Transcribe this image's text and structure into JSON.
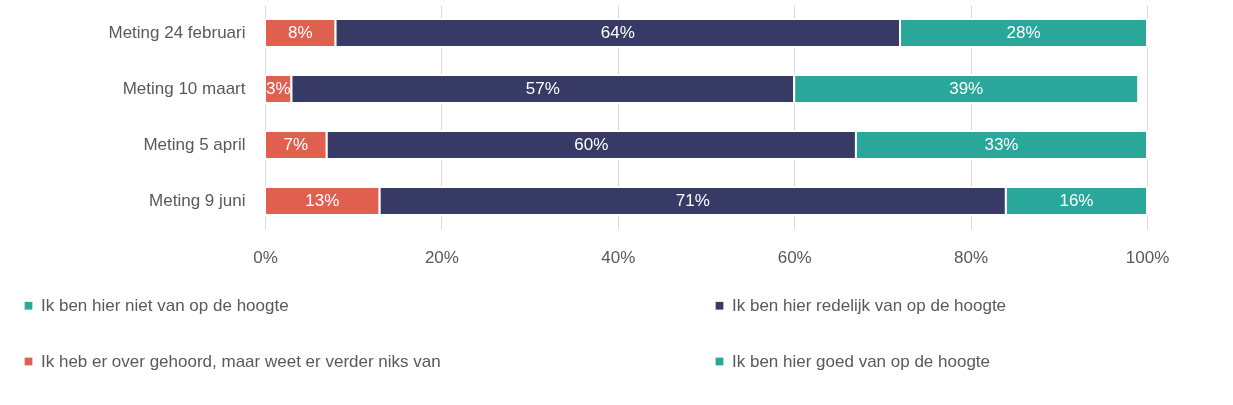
{
  "chart_data": {
    "type": "bar",
    "orientation": "horizontal",
    "stacked": true,
    "categories": [
      "Meting 24 februari",
      "Meting 10 maart",
      "Meting 5 april",
      "Meting 9 juni"
    ],
    "series": [
      {
        "name": "Ik ben hier niet van op de hoogte",
        "color": "#2ca89c",
        "values": [
          null,
          null,
          null,
          null
        ],
        "value_labels": [
          null,
          null,
          null,
          null
        ]
      },
      {
        "name": "Ik heb er over gehoord, maar weet er verder niks van",
        "color": "#e0604f",
        "values": [
          8,
          3,
          7,
          13
        ],
        "value_labels": [
          "8%",
          "3%",
          "7%",
          "13%"
        ]
      },
      {
        "name": "Ik ben hier redelijk van op de hoogte",
        "color": "#383a66",
        "values": [
          64,
          57,
          60,
          71
        ],
        "value_labels": [
          "64%",
          "57%",
          "60%",
          "71%"
        ]
      },
      {
        "name": "Ik ben hier goed van op de hoogte",
        "color": "#2aa79b",
        "values": [
          28,
          39,
          33,
          16
        ],
        "value_labels": [
          "28%",
          "39%",
          "33%",
          "16%"
        ]
      }
    ],
    "xlim": [
      0,
      100
    ],
    "xticks": [
      {
        "value": 0,
        "label": "0%"
      },
      {
        "value": 20,
        "label": "20%"
      },
      {
        "value": 40,
        "label": "40%"
      },
      {
        "value": 60,
        "label": "60%"
      },
      {
        "value": 80,
        "label": "80%"
      },
      {
        "value": 100,
        "label": "100%"
      }
    ],
    "grid": "x",
    "legend": "bottom"
  }
}
